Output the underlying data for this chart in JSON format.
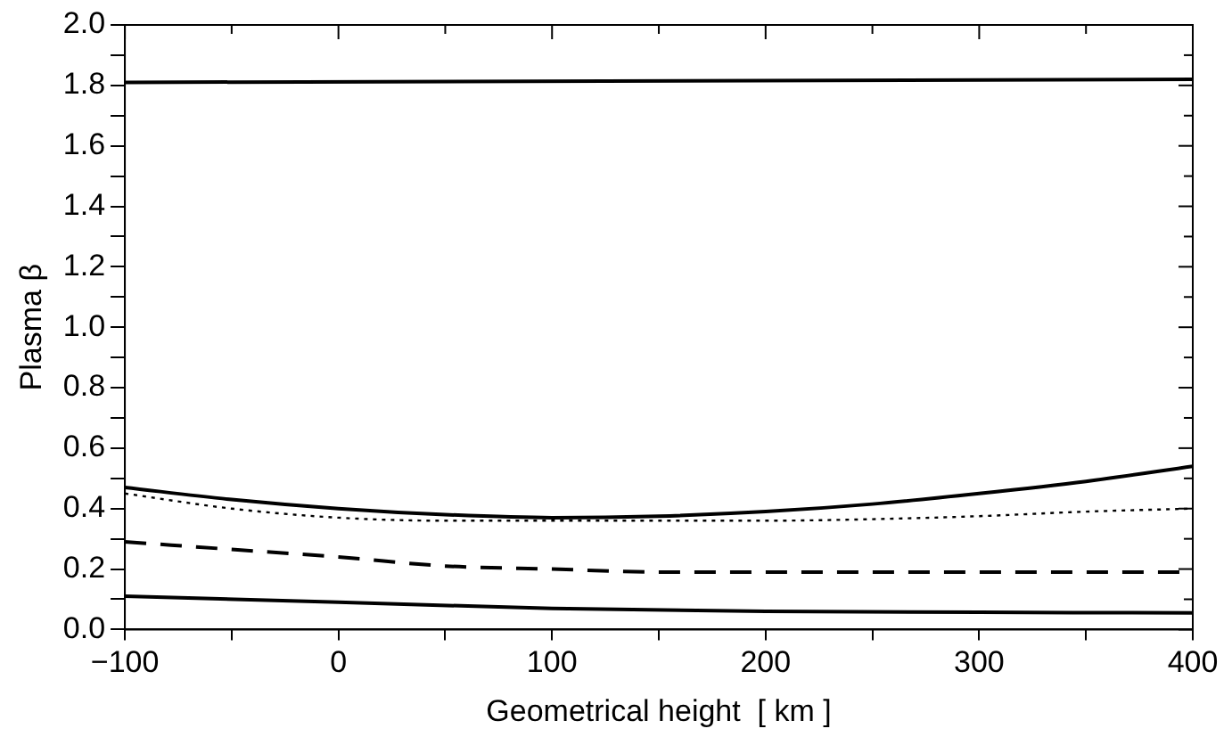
{
  "chart_data": {
    "type": "line",
    "xlabel": "Geometrical height  [ km ]",
    "ylabel": "Plasma β",
    "xlim": [
      -100,
      400
    ],
    "xticks": [
      {
        "value": -100,
        "label": "−100"
      },
      {
        "value": -50,
        "label": null
      },
      0,
      {
        "value": 50,
        "label": null
      },
      100,
      {
        "value": 150,
        "label": null
      },
      200,
      {
        "value": 250,
        "label": null
      },
      300,
      {
        "value": 350,
        "label": null
      },
      400
    ],
    "ylim": [
      0,
      2
    ],
    "yticks": [
      {
        "value": 0,
        "label": "0.0"
      },
      {
        "value": 0.1,
        "label": null
      },
      0.2,
      {
        "value": 0.3,
        "label": null
      },
      0.4,
      {
        "value": 0.5,
        "label": null
      },
      0.6,
      {
        "value": 0.7,
        "label": null
      },
      0.8,
      {
        "value": 0.9,
        "label": null
      },
      {
        "value": 1,
        "label": "1.0"
      },
      {
        "value": 1.1,
        "label": null
      },
      1.2,
      {
        "value": 1.3,
        "label": null
      },
      1.4,
      {
        "value": 1.5,
        "label": null
      },
      1.6,
      {
        "value": 1.7,
        "label": null
      },
      1.8,
      {
        "value": 1.9,
        "label": null
      },
      {
        "value": 2,
        "label": "2.0"
      }
    ],
    "grid": false,
    "legend": false,
    "marker": "none",
    "series": [
      {
        "color": "#000000",
        "line_style": "solid",
        "x": [
          -100,
          400
        ],
        "values": [
          1.81,
          1.82
        ]
      },
      {
        "color": "#000000",
        "line_style": "solid",
        "x": [
          -100,
          -50,
          0,
          50,
          100,
          150,
          200,
          250,
          300,
          350,
          400
        ],
        "values": [
          0.47,
          0.43,
          0.4,
          0.38,
          0.37,
          0.375,
          0.39,
          0.415,
          0.45,
          0.49,
          0.54
        ]
      },
      {
        "color": "#000000",
        "line_style": "dotted",
        "x": [
          -100,
          -50,
          0,
          50,
          100,
          150,
          200,
          250,
          300,
          350,
          400
        ],
        "values": [
          0.45,
          0.4,
          0.37,
          0.36,
          0.36,
          0.36,
          0.36,
          0.365,
          0.375,
          0.39,
          0.4
        ]
      },
      {
        "color": "#000000",
        "line_style": "dashed",
        "x": [
          -100,
          -50,
          0,
          50,
          100,
          150,
          200,
          250,
          300,
          350,
          400
        ],
        "values": [
          0.29,
          0.265,
          0.24,
          0.21,
          0.2,
          0.19,
          0.19,
          0.19,
          0.19,
          0.19,
          0.19
        ]
      },
      {
        "color": "#000000",
        "line_style": "solid",
        "x": [
          -100,
          0,
          100,
          200,
          300,
          400
        ],
        "values": [
          0.11,
          0.09,
          0.07,
          0.06,
          0.057,
          0.055
        ]
      }
    ]
  }
}
